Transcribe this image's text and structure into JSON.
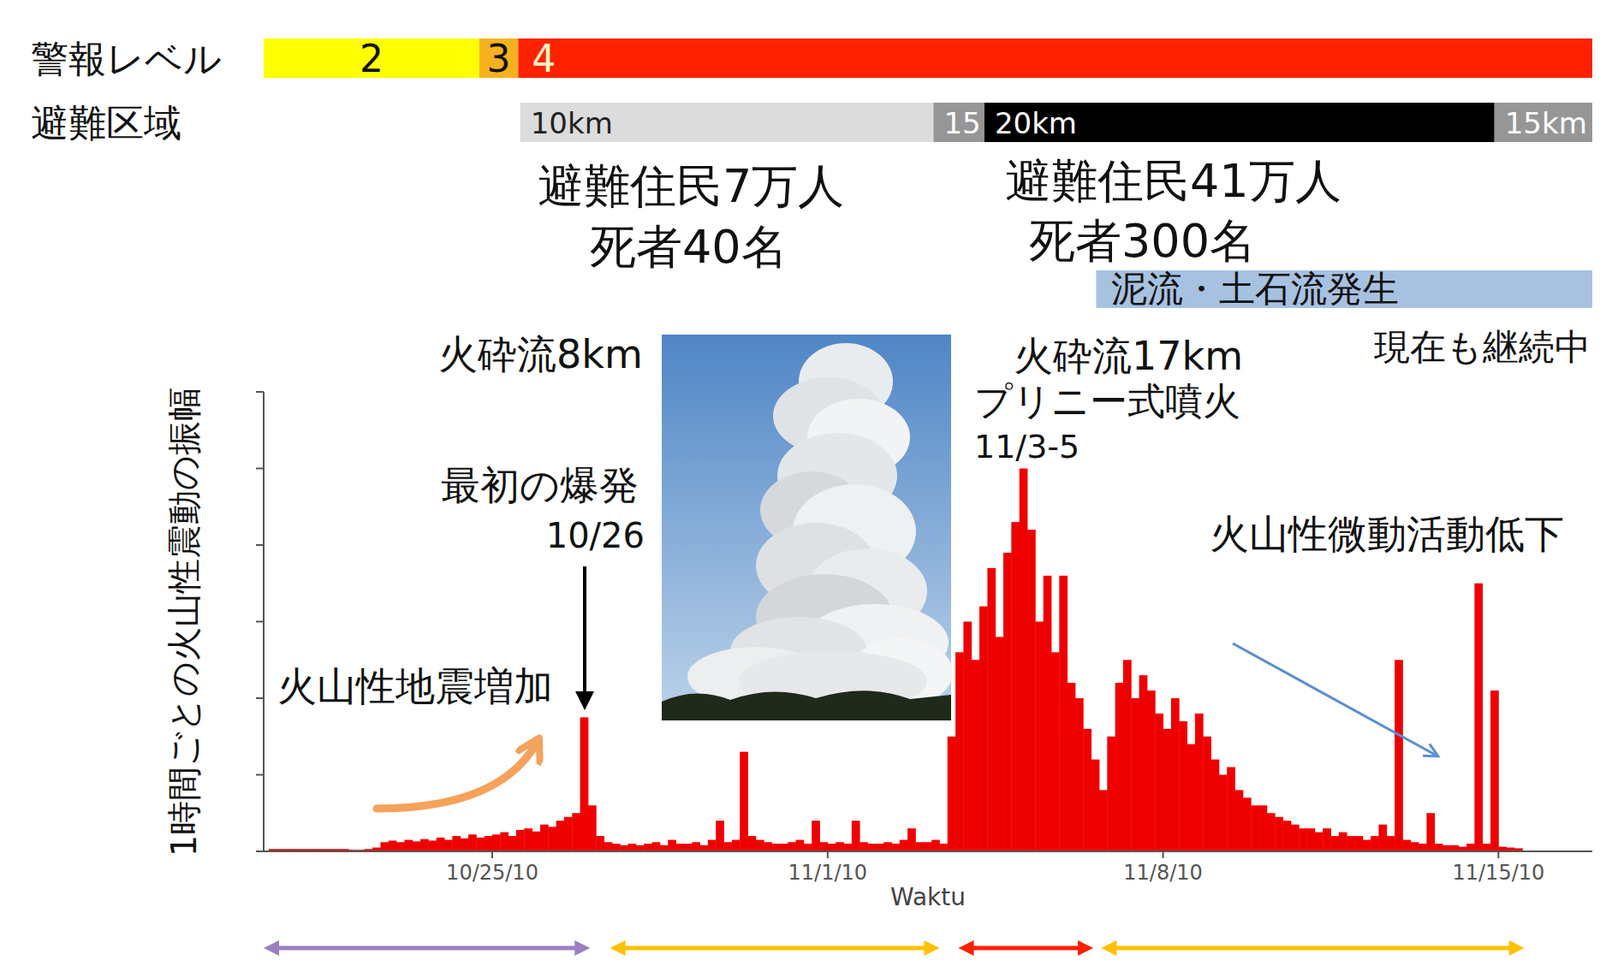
{
  "header": {
    "alert_label": "警報レベル",
    "evac_label": "避難区域"
  },
  "alert_levels": [
    {
      "label": "2",
      "start": "2010-10-20T05:30",
      "end": "2010-10-24T17:30",
      "color": "#ffff00"
    },
    {
      "label": "3",
      "start": "2010-10-24T17:30",
      "end": "2010-10-25T13:00",
      "color": "#f5b21e"
    },
    {
      "label": "4",
      "start": "2010-10-25T13:00",
      "end": "2010-11-16T23:00",
      "color": "#ff2200"
    }
  ],
  "evacuation_zones": [
    {
      "label": "10km",
      "start": "2010-10-25T14:00",
      "end": "2010-11-03T05:00",
      "color": "#dcdcdc"
    },
    {
      "label": "15",
      "start": "2010-11-03T05:00",
      "end": "2010-11-04T06:30",
      "color": "#969696"
    },
    {
      "label": "20km",
      "start": "2010-11-04T06:30",
      "end": "2010-11-14T22:00",
      "color": "#000000"
    },
    {
      "label": "15km",
      "start": "2010-11-14T22:00",
      "end": "2010-11-16T23:00",
      "color": "#969696"
    }
  ],
  "evacuation_notes": [
    {
      "evacuees": "避難住民7万人",
      "deaths": "死者40名"
    },
    {
      "evacuees": "避難住民41万人",
      "deaths": "死者300名"
    }
  ],
  "mudflow": {
    "label": "泥流・土石流発生",
    "start": "2010-11-06T14:30",
    "end": "2010-11-16T23:00",
    "color": "#a7c1e0",
    "note": "現在も継続中"
  },
  "chart_data": {
    "type": "bar",
    "y_label": "1時間ごとの火山性震動の振幅",
    "x_label": "Waktu",
    "color": "#ee0000",
    "tick_labels": "x",
    "xlim": [
      "2010-10-20T05:30",
      "2010-11-16T23:00"
    ],
    "ylim": [
      0,
      6
    ],
    "yticks": [
      0,
      1,
      2,
      3,
      4,
      5,
      6
    ],
    "xticks": [
      {
        "value": "2010-10-25T00:00",
        "label": "10/25/10"
      },
      {
        "value": "2010-11-01T00:00",
        "label": "11/1/10"
      },
      {
        "value": "2010-11-08T00:00",
        "label": "11/8/10"
      },
      {
        "value": "2010-11-15T00:00",
        "label": "11/15/10"
      }
    ],
    "x": [
      "2010-10-20T08:00",
      "2010-10-20T12:00",
      "2010-10-20T16:00",
      "2010-10-20T20:00",
      "2010-10-21T00:00",
      "2010-10-21T04:00",
      "2010-10-21T08:00",
      "2010-10-21T12:00",
      "2010-10-21T16:00",
      "2010-10-21T20:00",
      "2010-10-22T00:00",
      "2010-10-22T04:00",
      "2010-10-22T08:00",
      "2010-10-22T12:00",
      "2010-10-22T16:00",
      "2010-10-22T20:00",
      "2010-10-23T00:00",
      "2010-10-23T04:00",
      "2010-10-23T08:00",
      "2010-10-23T12:00",
      "2010-10-23T16:00",
      "2010-10-23T20:00",
      "2010-10-24T00:00",
      "2010-10-24T04:00",
      "2010-10-24T08:00",
      "2010-10-24T12:00",
      "2010-10-24T16:00",
      "2010-10-24T20:00",
      "2010-10-25T00:00",
      "2010-10-25T04:00",
      "2010-10-25T08:00",
      "2010-10-25T12:00",
      "2010-10-25T16:00",
      "2010-10-25T20:00",
      "2010-10-26T00:00",
      "2010-10-26T04:00",
      "2010-10-26T08:00",
      "2010-10-26T12:00",
      "2010-10-26T16:00",
      "2010-10-26T20:00",
      "2010-10-27T00:00",
      "2010-10-27T04:00",
      "2010-10-27T08:00",
      "2010-10-27T12:00",
      "2010-10-27T16:00",
      "2010-10-27T20:00",
      "2010-10-28T00:00",
      "2010-10-28T04:00",
      "2010-10-28T08:00",
      "2010-10-28T12:00",
      "2010-10-28T16:00",
      "2010-10-28T20:00",
      "2010-10-29T00:00",
      "2010-10-29T04:00",
      "2010-10-29T08:00",
      "2010-10-29T12:00",
      "2010-10-29T16:00",
      "2010-10-29T20:00",
      "2010-10-30T00:00",
      "2010-10-30T04:00",
      "2010-10-30T08:00",
      "2010-10-30T12:00",
      "2010-10-30T16:00",
      "2010-10-30T20:00",
      "2010-10-31T00:00",
      "2010-10-31T04:00",
      "2010-10-31T08:00",
      "2010-10-31T12:00",
      "2010-10-31T16:00",
      "2010-10-31T20:00",
      "2010-11-01T00:00",
      "2010-11-01T04:00",
      "2010-11-01T08:00",
      "2010-11-01T12:00",
      "2010-11-01T16:00",
      "2010-11-01T20:00",
      "2010-11-02T00:00",
      "2010-11-02T04:00",
      "2010-11-02T08:00",
      "2010-11-02T12:00",
      "2010-11-02T16:00",
      "2010-11-02T20:00",
      "2010-11-03T00:00",
      "2010-11-03T04:00",
      "2010-11-03T08:00",
      "2010-11-03T12:00",
      "2010-11-03T16:00",
      "2010-11-03T20:00",
      "2010-11-04T00:00",
      "2010-11-04T04:00",
      "2010-11-04T08:00",
      "2010-11-04T12:00",
      "2010-11-04T16:00",
      "2010-11-04T20:00",
      "2010-11-05T00:00",
      "2010-11-05T04:00",
      "2010-11-05T08:00",
      "2010-11-05T12:00",
      "2010-11-05T16:00",
      "2010-11-05T20:00",
      "2010-11-06T00:00",
      "2010-11-06T04:00",
      "2010-11-06T08:00",
      "2010-11-06T12:00",
      "2010-11-06T16:00",
      "2010-11-06T20:00",
      "2010-11-07T00:00",
      "2010-11-07T04:00",
      "2010-11-07T08:00",
      "2010-11-07T12:00",
      "2010-11-07T16:00",
      "2010-11-07T20:00",
      "2010-11-08T00:00",
      "2010-11-08T04:00",
      "2010-11-08T08:00",
      "2010-11-08T12:00",
      "2010-11-08T16:00",
      "2010-11-08T20:00",
      "2010-11-09T00:00",
      "2010-11-09T04:00",
      "2010-11-09T08:00",
      "2010-11-09T12:00",
      "2010-11-09T16:00",
      "2010-11-09T20:00",
      "2010-11-10T00:00",
      "2010-11-10T04:00",
      "2010-11-10T08:00",
      "2010-11-10T12:00",
      "2010-11-10T16:00",
      "2010-11-10T20:00",
      "2010-11-11T00:00",
      "2010-11-11T04:00",
      "2010-11-11T08:00",
      "2010-11-11T12:00",
      "2010-11-11T16:00",
      "2010-11-11T20:00",
      "2010-11-12T00:00",
      "2010-11-12T04:00",
      "2010-11-12T08:00",
      "2010-11-12T12:00",
      "2010-11-12T16:00",
      "2010-11-12T20:00",
      "2010-11-13T00:00",
      "2010-11-13T04:00",
      "2010-11-13T08:00",
      "2010-11-13T12:00",
      "2010-11-13T16:00",
      "2010-11-13T20:00",
      "2010-11-14T00:00",
      "2010-11-14T04:00",
      "2010-11-14T08:00",
      "2010-11-14T12:00",
      "2010-11-14T16:00",
      "2010-11-14T20:00",
      "2010-11-15T00:00",
      "2010-11-15T04:00",
      "2010-11-15T08:00"
    ],
    "values": [
      0.03,
      0.03,
      0.03,
      0.03,
      0.03,
      0.03,
      0.03,
      0.03,
      0.03,
      0.03,
      0.02,
      0.02,
      0.03,
      0.05,
      0.12,
      0.14,
      0.12,
      0.15,
      0.13,
      0.16,
      0.14,
      0.18,
      0.15,
      0.2,
      0.17,
      0.22,
      0.18,
      0.2,
      0.22,
      0.25,
      0.2,
      0.28,
      0.3,
      0.26,
      0.35,
      0.32,
      0.4,
      0.45,
      0.5,
      1.75,
      0.6,
      0.2,
      0.12,
      0.1,
      0.08,
      0.1,
      0.08,
      0.1,
      0.12,
      0.08,
      0.15,
      0.1,
      0.1,
      0.12,
      0.08,
      0.15,
      0.4,
      0.12,
      0.15,
      1.3,
      0.2,
      0.15,
      0.12,
      0.1,
      0.1,
      0.12,
      0.15,
      0.1,
      0.4,
      0.12,
      0.1,
      0.12,
      0.1,
      0.4,
      0.12,
      0.1,
      0.1,
      0.12,
      0.1,
      0.15,
      0.3,
      0.12,
      0.12,
      0.15,
      0.1,
      1.5,
      2.6,
      3.0,
      2.5,
      3.2,
      3.7,
      2.8,
      3.9,
      4.3,
      5.0,
      4.2,
      3.0,
      3.6,
      2.6,
      3.6,
      2.2,
      2.0,
      1.6,
      1.2,
      0.8,
      1.5,
      2.2,
      2.5,
      2.0,
      2.3,
      2.1,
      1.8,
      1.6,
      2.0,
      1.7,
      1.4,
      1.8,
      1.5,
      1.2,
      1.0,
      1.1,
      0.8,
      0.7,
      0.6,
      0.6,
      0.5,
      0.45,
      0.4,
      0.35,
      0.3,
      0.3,
      0.25,
      0.3,
      0.2,
      0.25,
      0.2,
      0.2,
      0.15,
      0.2,
      0.35,
      0.2,
      2.5,
      0.15,
      0.12,
      0.1,
      0.5,
      0.1,
      0.08,
      0.08,
      0.06,
      0.1,
      3.5,
      0.1,
      2.1,
      0.06,
      0.05,
      0.04
    ],
    "annotations": {
      "pyroclastic_8km": "火砕流8km",
      "first_explosion": "最初の爆発",
      "first_explosion_date": "10/26",
      "seismic_increase": "火山性地震増加",
      "pyroclastic_17km": "火砕流17km",
      "plinian": "プリニー式噴火",
      "plinian_dates": "11/3-5",
      "tremor_decrease": "火山性微動活動低下"
    },
    "phases": [
      {
        "start": "2010-10-20T05:30",
        "end": "2010-10-27T01:00",
        "color": "#9b7fbf"
      },
      {
        "start": "2010-10-27T11:00",
        "end": "2010-11-03T08:00",
        "color": "#ffc000"
      },
      {
        "start": "2010-11-03T17:30",
        "end": "2010-11-06T13:00",
        "color": "#ff2000"
      },
      {
        "start": "2010-11-06T17:00",
        "end": "2010-11-15T13:00",
        "color": "#ffc000"
      }
    ]
  }
}
